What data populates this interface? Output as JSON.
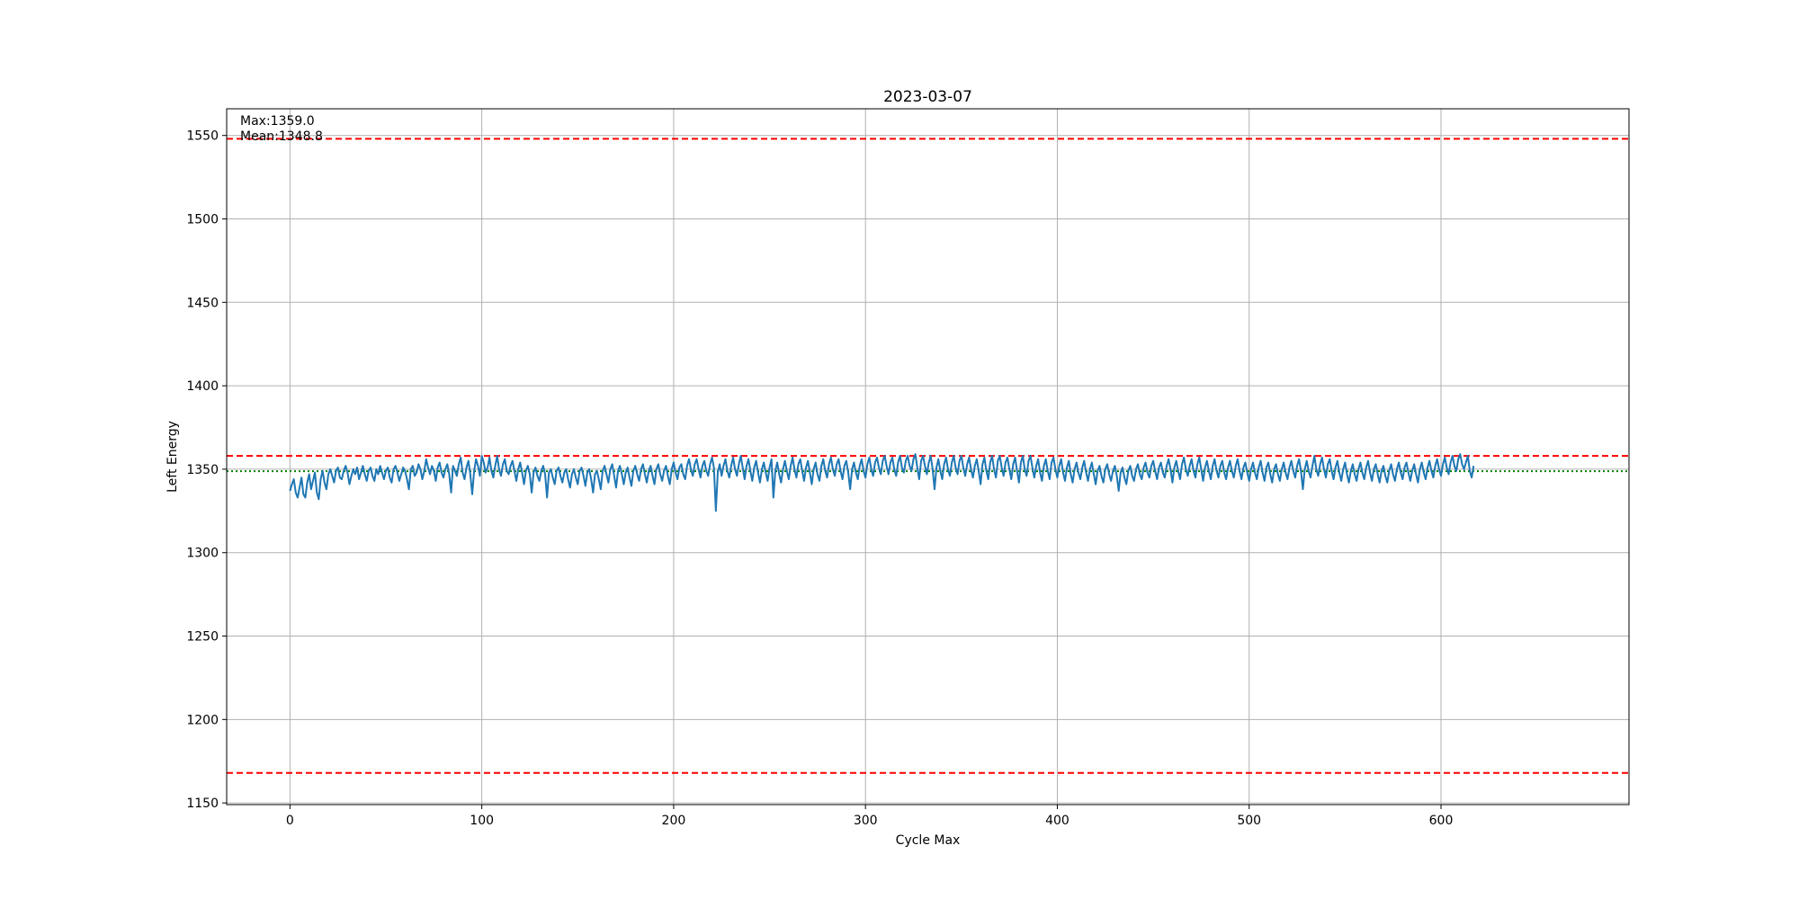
{
  "chart_data": {
    "type": "line",
    "title": "2023-03-07",
    "xlabel": "Cycle Max",
    "ylabel": "Left Energy",
    "xlim": [
      -33,
      698
    ],
    "ylim": [
      1149,
      1566
    ],
    "xticks": [
      0,
      100,
      200,
      300,
      400,
      500,
      600
    ],
    "yticks": [
      1150,
      1200,
      1250,
      1300,
      1350,
      1400,
      1450,
      1500,
      1550
    ],
    "grid": true,
    "annotations": [
      "Max:1359.0",
      "Mean:1348.8"
    ],
    "reference_lines": [
      {
        "y": 1548,
        "style": "dashed",
        "color": "#ff0000"
      },
      {
        "y": 1358,
        "style": "dashed",
        "color": "#ff0000"
      },
      {
        "y": 1348.8,
        "style": "dotted",
        "color": "#008000"
      },
      {
        "y": 1168,
        "style": "dashed",
        "color": "#ff0000"
      }
    ],
    "series": [
      {
        "color": "#1f77b4",
        "x_start": 0,
        "x_step": 1,
        "y": [
          1337,
          1341,
          1344,
          1336,
          1333,
          1339,
          1345,
          1335,
          1333,
          1342,
          1347,
          1338,
          1343,
          1348,
          1336,
          1332,
          1344,
          1349,
          1342,
          1338,
          1347,
          1350,
          1346,
          1342,
          1349,
          1351,
          1345,
          1344,
          1349,
          1352,
          1348,
          1341,
          1346,
          1350,
          1347,
          1351,
          1344,
          1348,
          1352,
          1347,
          1343,
          1349,
          1351,
          1346,
          1343,
          1350,
          1347,
          1352,
          1348,
          1344,
          1349,
          1351,
          1345,
          1342,
          1350,
          1352,
          1348,
          1343,
          1347,
          1351,
          1349,
          1344,
          1338,
          1350,
          1352,
          1346,
          1348,
          1353,
          1350,
          1344,
          1349,
          1356,
          1351,
          1347,
          1352,
          1349,
          1343,
          1351,
          1354,
          1348,
          1345,
          1350,
          1353,
          1347,
          1336,
          1352,
          1349,
          1346,
          1353,
          1357,
          1348,
          1344,
          1351,
          1355,
          1347,
          1335,
          1349,
          1356,
          1352,
          1346,
          1358,
          1354,
          1348,
          1351,
          1357,
          1349,
          1345,
          1352,
          1358,
          1350,
          1346,
          1353,
          1356,
          1349,
          1347,
          1352,
          1355,
          1349,
          1343,
          1350,
          1354,
          1348,
          1341,
          1349,
          1352,
          1347,
          1336,
          1348,
          1351,
          1346,
          1343,
          1349,
          1352,
          1347,
          1333,
          1348,
          1350,
          1345,
          1341,
          1349,
          1351,
          1346,
          1342,
          1348,
          1350,
          1344,
          1339,
          1347,
          1350,
          1345,
          1341,
          1349,
          1351,
          1346,
          1340,
          1348,
          1350,
          1344,
          1336,
          1347,
          1349,
          1344,
          1338,
          1349,
          1352,
          1347,
          1342,
          1350,
          1353,
          1346,
          1339,
          1349,
          1352,
          1347,
          1341,
          1348,
          1351,
          1345,
          1340,
          1349,
          1352,
          1347,
          1343,
          1350,
          1353,
          1347,
          1342,
          1349,
          1352,
          1346,
          1341,
          1350,
          1353,
          1347,
          1343,
          1349,
          1352,
          1346,
          1341,
          1350,
          1354,
          1348,
          1344,
          1351,
          1353,
          1347,
          1344,
          1352,
          1356,
          1350,
          1346,
          1353,
          1356,
          1350,
          1345,
          1352,
          1355,
          1349,
          1346,
          1353,
          1357,
          1351,
          1325,
          1348,
          1353,
          1346,
          1352,
          1356,
          1349,
          1345,
          1352,
          1357,
          1350,
          1346,
          1353,
          1358,
          1351,
          1344,
          1352,
          1356,
          1349,
          1343,
          1351,
          1355,
          1348,
          1342,
          1350,
          1354,
          1348,
          1343,
          1351,
          1356,
          1333,
          1349,
          1354,
          1347,
          1342,
          1350,
          1355,
          1349,
          1344,
          1352,
          1357,
          1350,
          1345,
          1353,
          1356,
          1349,
          1343,
          1351,
          1355,
          1348,
          1341,
          1350,
          1354,
          1347,
          1343,
          1352,
          1356,
          1349,
          1345,
          1353,
          1357,
          1350,
          1346,
          1353,
          1356,
          1349,
          1344,
          1352,
          1355,
          1348,
          1338,
          1350,
          1354,
          1348,
          1344,
          1352,
          1356,
          1349,
          1345,
          1353,
          1357,
          1350,
          1346,
          1354,
          1357,
          1351,
          1347,
          1355,
          1358,
          1352,
          1347,
          1354,
          1357,
          1350,
          1346,
          1354,
          1358,
          1351,
          1348,
          1355,
          1358,
          1352,
          1349,
          1356,
          1359,
          1351,
          1344,
          1355,
          1358,
          1352,
          1347,
          1354,
          1358,
          1350,
          1338,
          1351,
          1356,
          1349,
          1344,
          1353,
          1357,
          1350,
          1346,
          1354,
          1358,
          1351,
          1347,
          1355,
          1358,
          1351,
          1346,
          1353,
          1357,
          1350,
          1345,
          1352,
          1356,
          1349,
          1341,
          1353,
          1357,
          1349,
          1344,
          1354,
          1358,
          1350,
          1345,
          1355,
          1358,
          1351,
          1346,
          1354,
          1357,
          1350,
          1344,
          1353,
          1357,
          1349,
          1342,
          1354,
          1358,
          1350,
          1346,
          1355,
          1358,
          1351,
          1345,
          1352,
          1356,
          1348,
          1343,
          1352,
          1356,
          1349,
          1344,
          1354,
          1357,
          1350,
          1345,
          1352,
          1356,
          1348,
          1343,
          1351,
          1355,
          1347,
          1342,
          1350,
          1354,
          1348,
          1344,
          1351,
          1355,
          1348,
          1343,
          1350,
          1354,
          1347,
          1341,
          1349,
          1352,
          1346,
          1342,
          1350,
          1353,
          1347,
          1343,
          1349,
          1352,
          1346,
          1337,
          1348,
          1351,
          1345,
          1341,
          1349,
          1352,
          1346,
          1343,
          1350,
          1353,
          1347,
          1344,
          1351,
          1354,
          1348,
          1345,
          1352,
          1355,
          1349,
          1344,
          1351,
          1354,
          1348,
          1345,
          1352,
          1356,
          1350,
          1342,
          1351,
          1355,
          1349,
          1344,
          1353,
          1357,
          1350,
          1346,
          1352,
          1356,
          1349,
          1345,
          1353,
          1357,
          1350,
          1343,
          1351,
          1355,
          1349,
          1344,
          1352,
          1356,
          1349,
          1345,
          1352,
          1355,
          1348,
          1344,
          1351,
          1355,
          1349,
          1345,
          1352,
          1356,
          1349,
          1344,
          1351,
          1354,
          1348,
          1343,
          1350,
          1354,
          1348,
          1344,
          1351,
          1355,
          1348,
          1343,
          1351,
          1354,
          1347,
          1342,
          1350,
          1353,
          1347,
          1343,
          1350,
          1354,
          1348,
          1344,
          1351,
          1355,
          1349,
          1345,
          1352,
          1356,
          1349,
          1338,
          1350,
          1355,
          1349,
          1345,
          1352,
          1358,
          1350,
          1346,
          1353,
          1357,
          1350,
          1345,
          1353,
          1356,
          1349,
          1344,
          1351,
          1355,
          1348,
          1343,
          1350,
          1354,
          1347,
          1342,
          1349,
          1353,
          1347,
          1343,
          1350,
          1354,
          1348,
          1344,
          1351,
          1355,
          1348,
          1343,
          1350,
          1353,
          1347,
          1342,
          1349,
          1352,
          1346,
          1342,
          1349,
          1353,
          1347,
          1343,
          1350,
          1354,
          1348,
          1344,
          1351,
          1354,
          1348,
          1343,
          1349,
          1353,
          1347,
          1342,
          1350,
          1354,
          1348,
          1344,
          1351,
          1355,
          1349,
          1345,
          1352,
          1356,
          1350,
          1346,
          1353,
          1357,
          1351,
          1347,
          1354,
          1358,
          1352,
          1349,
          1356,
          1359,
          1353,
          1350,
          1354,
          1358,
          1349,
          1345,
          1352
        ]
      }
    ]
  }
}
